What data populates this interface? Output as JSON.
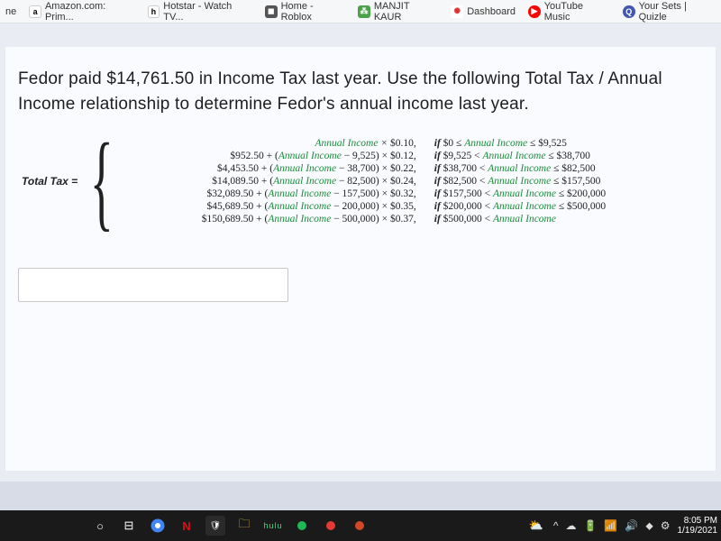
{
  "bookmarks": {
    "partial_left": "ne",
    "items": [
      {
        "icon": "a",
        "label": "Amazon.com: Prim..."
      },
      {
        "icon": "h",
        "label": "Hotstar - Watch TV..."
      },
      {
        "icon": "R",
        "label": "Home - Roblox"
      },
      {
        "icon": "M",
        "label": "MANJIT KAUR"
      },
      {
        "icon": "D",
        "label": "Dashboard"
      },
      {
        "icon": "Y",
        "label": "YouTube Music"
      },
      {
        "icon": "Q",
        "label": "Your Sets | Quizle"
      }
    ]
  },
  "problem": {
    "text": "Fedor paid $14,761.50 in Income Tax last year.  Use the following Total Tax / Annual Income relationship to determine Fedor's annual income last year."
  },
  "piecewise": {
    "lhs": "Total Tax =",
    "ai_term": "Annual Income",
    "rows": [
      {
        "pre": "",
        "shift": "",
        "mult": "$0.10,",
        "cond_l": "$0 ≤ ",
        "cond_r": " ≤ $9,525"
      },
      {
        "pre": "$952.50 + (",
        "shift": " − 9,525)",
        "mult": "$0.12,",
        "cond_l": "$9,525 < ",
        "cond_r": " ≤ $38,700"
      },
      {
        "pre": "$4,453.50 + (",
        "shift": " − 38,700)",
        "mult": "$0.22,",
        "cond_l": "$38,700 < ",
        "cond_r": " ≤ $82,500"
      },
      {
        "pre": "$14,089.50 + (",
        "shift": " − 82,500)",
        "mult": "$0.24,",
        "cond_l": "$82,500 < ",
        "cond_r": " ≤ $157,500"
      },
      {
        "pre": "$32,089.50 + (",
        "shift": " − 157,500)",
        "mult": "$0.32,",
        "cond_l": "$157,500 < ",
        "cond_r": " ≤ $200,000"
      },
      {
        "pre": "$45,689.50 + (",
        "shift": " − 200,000)",
        "mult": "$0.35,",
        "cond_l": "$200,000 < ",
        "cond_r": " ≤ $500,000"
      },
      {
        "pre": "$150,689.50 + (",
        "shift": " − 500,000)",
        "mult": "$0.37,",
        "cond_l": "$500,000 < ",
        "cond_r": ""
      }
    ],
    "if_word": "if"
  },
  "taskbar": {
    "time": "8:05 PM",
    "date": "1/19/2021"
  }
}
